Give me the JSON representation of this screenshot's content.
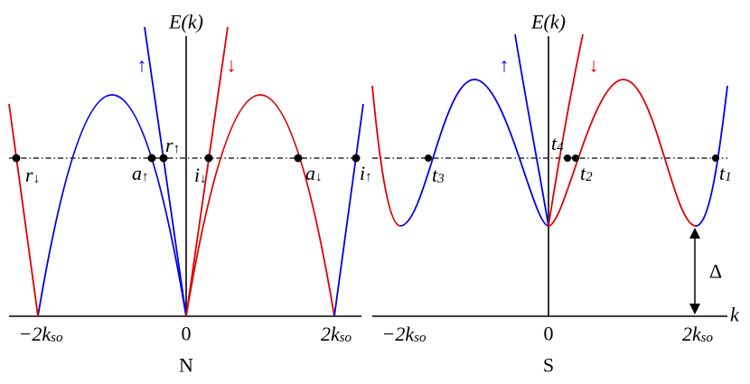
{
  "left": {
    "axis_label": "E(k)",
    "spin_up": "↑",
    "spin_down": "↓",
    "points": [
      {
        "main": "r",
        "sub": "↓"
      },
      {
        "main": "a",
        "sub": "↑"
      },
      {
        "main": "r",
        "sub": "↑"
      },
      {
        "main": "i",
        "sub": "↓"
      },
      {
        "main": "a",
        "sub": "↓"
      },
      {
        "main": "i",
        "sub": "↑"
      }
    ],
    "ticks": [
      {
        "main": "−2k",
        "sub": "so"
      },
      {
        "main": "0"
      },
      {
        "main": "2k",
        "sub": "so"
      }
    ],
    "caption": "N"
  },
  "right": {
    "axis_label": "E(k)",
    "spin_up": "↑",
    "spin_down": "↓",
    "points": [
      {
        "main": "t",
        "sub": "3"
      },
      {
        "main": "t",
        "sub": "4"
      },
      {
        "main": "t",
        "sub": "2"
      },
      {
        "main": "t",
        "sub": "1"
      }
    ],
    "ticks": [
      {
        "main": "−2k",
        "sub": "so"
      },
      {
        "main": "0"
      },
      {
        "main": "2k",
        "sub": "so"
      }
    ],
    "gap_label": "Δ",
    "k_axis": "k",
    "caption": "S"
  }
}
